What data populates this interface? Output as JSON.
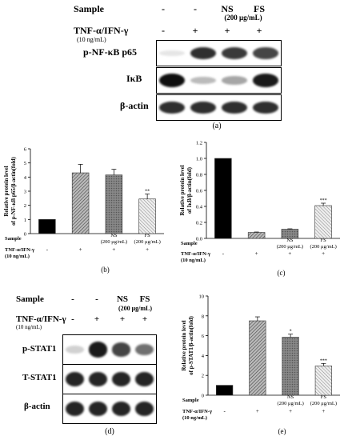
{
  "panel_a": {
    "sample_label": "Sample",
    "sample_cols": [
      "-",
      "-",
      "NS",
      "FS"
    ],
    "conc_note": "(200 μg/mL)",
    "tnf_label": "TNF-α/IFN-γ",
    "tnf_conc": "(10 ng/mL)",
    "tnf_cols": [
      "-",
      "+",
      "+",
      "+"
    ],
    "blots": [
      {
        "label": "p-NF-κB p65",
        "intensity": [
          0,
          0.85,
          0.8,
          0.75
        ]
      },
      {
        "label": "IκB",
        "intensity": [
          1,
          0.2,
          0.3,
          0.95
        ]
      },
      {
        "label": "β-actin",
        "intensity": [
          0.85,
          0.85,
          0.85,
          0.85
        ]
      }
    ],
    "letter": "(a)"
  },
  "panel_d": {
    "sample_label": "Sample",
    "sample_cols": [
      "-",
      "-",
      "NS",
      "FS"
    ],
    "conc_note": "(200 μg/mL)",
    "tnf_label": "TNF-α/IFN-γ",
    "tnf_conc": "(10 ng/mL)",
    "tnf_cols": [
      "-",
      "+",
      "+",
      "+"
    ],
    "blots": [
      {
        "label": "p-STAT1",
        "intensity": [
          0.1,
          0.95,
          0.75,
          0.55
        ]
      },
      {
        "label": "T-STAT1",
        "intensity": [
          0.9,
          0.9,
          0.9,
          0.9
        ]
      },
      {
        "label": "β-actin",
        "intensity": [
          0.9,
          0.9,
          0.9,
          0.9
        ]
      }
    ],
    "letter": "(d)"
  },
  "chart_data": [
    {
      "id": "b",
      "type": "bar",
      "ylabel": "Relative protein level\nof p-NF-κB p65/β-actin(fold)",
      "ylim": [
        0,
        6
      ],
      "yticks": [
        0,
        1,
        2,
        3,
        4,
        5,
        6
      ],
      "yticklabels": [
        "0",
        "1",
        "2",
        "3",
        "4",
        "5",
        "6"
      ],
      "values": [
        1,
        4.3,
        4.15,
        2.45
      ],
      "errors": [
        0,
        0.6,
        0.4,
        0.35
      ],
      "sig": [
        "",
        "",
        "",
        "**"
      ],
      "categories": [
        "",
        "",
        "NS\n(200 μg/mL)",
        "FS\n(200 μg/mL)"
      ],
      "sample_label": "Sample",
      "tnf_label": "TNF-α/IFN-γ\n(10 ng/mL)",
      "tnf_row": [
        "-",
        "+",
        "+",
        "+"
      ],
      "letter": "(b)"
    },
    {
      "id": "c",
      "type": "bar",
      "ylabel": "Relative protein level\nof IκB/β-actin(fold)",
      "ylim": [
        0,
        1.2
      ],
      "yticks": [
        0,
        0.2,
        0.4,
        0.6,
        0.8,
        1.0,
        1.2
      ],
      "yticklabels": [
        "0.0",
        "0.2",
        "0.4",
        "0.6",
        "0.8",
        "1.0",
        "1.2"
      ],
      "values": [
        1.0,
        0.075,
        0.115,
        0.41
      ],
      "errors": [
        0,
        0.005,
        0.005,
        0.03
      ],
      "sig": [
        "",
        "",
        "",
        "***"
      ],
      "categories": [
        "",
        "",
        "NS\n(200 μg/mL)",
        "FS\n(200 μg/mL)"
      ],
      "sample_label": "Sample",
      "tnf_label": "TNF-α/IFN-γ\n(10 ng/mL)",
      "tnf_row": [
        "-",
        "+",
        "+",
        "+"
      ],
      "letter": "(c)"
    },
    {
      "id": "e",
      "type": "bar",
      "ylabel": "Relative protein level\nof p-STAT1/β-actin(fold)",
      "ylim": [
        0,
        10
      ],
      "yticks": [
        0,
        2,
        4,
        6,
        8,
        10
      ],
      "yticklabels": [
        "0",
        "2",
        "4",
        "6",
        "8",
        "10"
      ],
      "values": [
        1,
        7.5,
        5.85,
        2.95
      ],
      "errors": [
        0,
        0.4,
        0.3,
        0.25
      ],
      "sig": [
        "",
        "",
        "*",
        "***"
      ],
      "categories": [
        "",
        "",
        "NS\n(200 μg/mL)",
        "FS\n(200 μg/mL)"
      ],
      "sample_label": "Sample",
      "tnf_label": "TNF-α/IFN-γ\n(10 ng/mL)",
      "tnf_row": [
        "-",
        "+",
        "+",
        "+"
      ],
      "letter": "(e)"
    }
  ]
}
